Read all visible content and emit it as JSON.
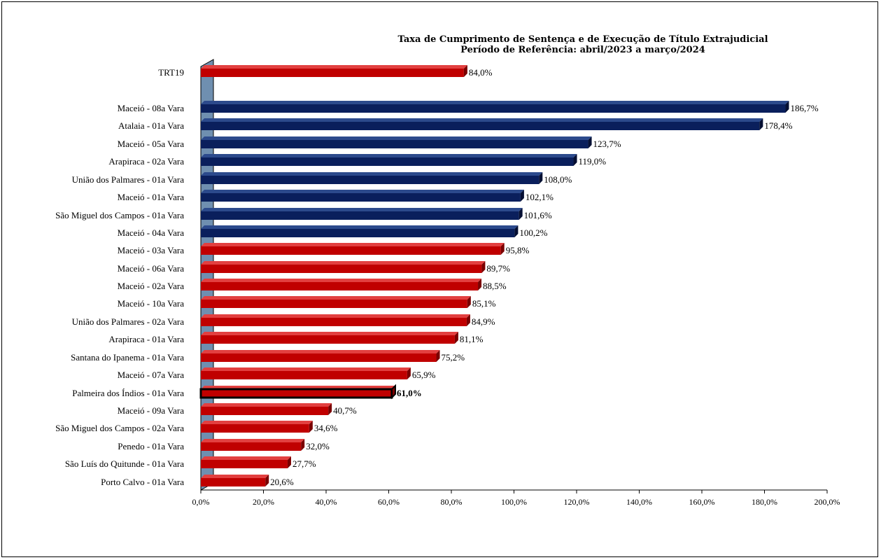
{
  "chart_data": {
    "type": "bar",
    "orientation": "horizontal",
    "title": "Taxa de Cumprimento de Sentença e de Execução de Título Extrajudicial",
    "subtitle": "Período de Referência: abril/2023 a março/2024",
    "xlabel": "",
    "ylabel": "",
    "xlim": [
      0,
      200
    ],
    "x_ticks": [
      "0,0%",
      "20,0%",
      "40,0%",
      "60,0%",
      "80,0%",
      "100,0%",
      "120,0%",
      "140,0%",
      "160,0%",
      "180,0%",
      "200,0%"
    ],
    "grid": false,
    "legend": "none",
    "colors": {
      "above_100": "#0a1f5c",
      "below_100": "#c00000",
      "highlight_border": "#000000",
      "wall": "#6f8fb0"
    },
    "bars": [
      {
        "category": "TRT19",
        "value": 84.0,
        "label": "84,0%",
        "color": "red",
        "highlight": false
      },
      {
        "category": "Maceió - 08a Vara",
        "value": 186.7,
        "label": "186,7%",
        "color": "blue",
        "highlight": false
      },
      {
        "category": "Atalaia - 01a Vara",
        "value": 178.4,
        "label": "178,4%",
        "color": "blue",
        "highlight": false
      },
      {
        "category": "Maceió - 05a Vara",
        "value": 123.7,
        "label": "123,7%",
        "color": "blue",
        "highlight": false
      },
      {
        "category": "Arapiraca - 02a Vara",
        "value": 119.0,
        "label": "119,0%",
        "color": "blue",
        "highlight": false
      },
      {
        "category": "União dos Palmares - 01a Vara",
        "value": 108.0,
        "label": "108,0%",
        "color": "blue",
        "highlight": false
      },
      {
        "category": "Maceió - 01a Vara",
        "value": 102.1,
        "label": "102,1%",
        "color": "blue",
        "highlight": false
      },
      {
        "category": "São Miguel dos Campos - 01a Vara",
        "value": 101.6,
        "label": "101,6%",
        "color": "blue",
        "highlight": false
      },
      {
        "category": "Maceió - 04a Vara",
        "value": 100.2,
        "label": "100,2%",
        "color": "blue",
        "highlight": false
      },
      {
        "category": "Maceió - 03a Vara",
        "value": 95.8,
        "label": "95,8%",
        "color": "red",
        "highlight": false
      },
      {
        "category": "Maceió - 06a Vara",
        "value": 89.7,
        "label": "89,7%",
        "color": "red",
        "highlight": false
      },
      {
        "category": "Maceió - 02a Vara",
        "value": 88.5,
        "label": "88,5%",
        "color": "red",
        "highlight": false
      },
      {
        "category": "Maceió - 10a Vara",
        "value": 85.1,
        "label": "85,1%",
        "color": "red",
        "highlight": false
      },
      {
        "category": "União dos Palmares - 02a Vara",
        "value": 84.9,
        "label": "84,9%",
        "color": "red",
        "highlight": false
      },
      {
        "category": "Arapiraca - 01a Vara",
        "value": 81.1,
        "label": "81,1%",
        "color": "red",
        "highlight": false
      },
      {
        "category": "Santana do Ipanema - 01a Vara",
        "value": 75.2,
        "label": "75,2%",
        "color": "red",
        "highlight": false
      },
      {
        "category": "Maceió - 07a Vara",
        "value": 65.9,
        "label": "65,9%",
        "color": "red",
        "highlight": false
      },
      {
        "category": "Palmeira dos Índios - 01a Vara",
        "value": 61.0,
        "label": "61,0%",
        "color": "red",
        "highlight": true
      },
      {
        "category": "Maceió - 09a Vara",
        "value": 40.7,
        "label": "40,7%",
        "color": "red",
        "highlight": false
      },
      {
        "category": "São Miguel dos Campos - 02a Vara",
        "value": 34.6,
        "label": "34,6%",
        "color": "red",
        "highlight": false
      },
      {
        "category": "Penedo - 01a Vara",
        "value": 32.0,
        "label": "32,0%",
        "color": "red",
        "highlight": false
      },
      {
        "category": "São Luís do Quitunde - 01a Vara",
        "value": 27.7,
        "label": "27,7%",
        "color": "red",
        "highlight": false
      },
      {
        "category": "Porto Calvo - 01a Vara",
        "value": 20.6,
        "label": "20,6%",
        "color": "red",
        "highlight": false
      }
    ]
  }
}
